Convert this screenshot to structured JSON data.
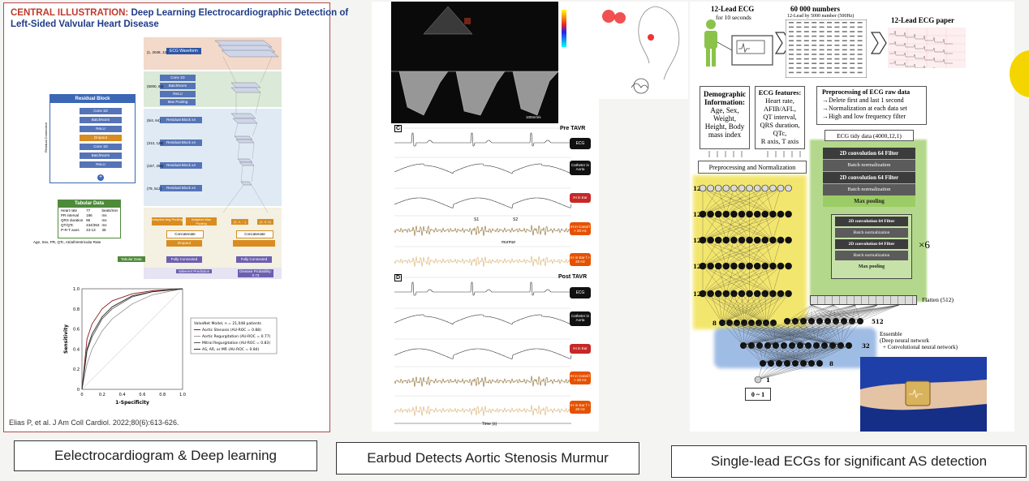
{
  "left_panel": {
    "title_prefix": "CENTRAL ILLUSTRATION:",
    "title_rest": "Deep Learning Electrocardiographic Detection of",
    "title_line2": "Left-Sided Valvular Heart Disease",
    "residual_block_title": "Residual Block",
    "residual_layers": [
      "Conv 1D",
      "BatchNorm",
      "ReLU",
      "Dropout",
      "Conv 1D",
      "BatchNorm",
      "ReLU"
    ],
    "residual_side_label": "Residual Connection",
    "tabular_title": "Tabular Data",
    "tabular_rows": [
      [
        "Heart rate",
        "77",
        "beats/min"
      ],
      [
        "PR interval",
        "186",
        "ms"
      ],
      [
        "QRS duration",
        "96",
        "ms"
      ],
      [
        "QT/QTc",
        "434/353",
        "ms"
      ],
      [
        "P-R-T axes",
        "43-13",
        "38"
      ]
    ],
    "tabular_footer": "Age, Sex, PR, QTc, Atrial/Ventricular Rate",
    "ecg_waveform_label": "ECG Waveform",
    "network_layers": [
      "Conv 1D",
      "BatchNorm",
      "ReLU",
      "Max Pooling",
      "Residual Block x4",
      "Residual Block x4",
      "Residual Block x4",
      "Residual Block x4"
    ],
    "shape_labels": [
      "(1, 2048, 12)",
      "(5000, 64)",
      "(5/4, 64)",
      "(313, 128)",
      "(157, 256)",
      "(79, 512)"
    ],
    "pooling_labels": [
      "Adaptive Avg Pooling",
      "Adaptive Max Pooling",
      "Concatenate"
    ],
    "dropout_label": "Dropout",
    "fully_connected": "Fully Connected",
    "tabular_data_chip": "Tabular Data",
    "concatenate_label": "Concatenate",
    "output_left": "Valvenet Prediction",
    "output_right": "Disease Probability: 0.73",
    "legend_title": "ValveNet Model, n = 21,048 patients",
    "legend_items": [
      "Aortic Stenosis (AU-ROC = 0.88)",
      "Aortic Regurgitation (AU-ROC = 0.77)",
      "Mitral Regurgitation (AU-ROC = 0.83)",
      "AS, AR, or MR (AU-ROC = 0.84)"
    ],
    "ylabel": "Sensitivity",
    "xlabel": "1-Specificity",
    "ticks": [
      "0",
      "0.2",
      "0.4",
      "0.6",
      "0.8",
      "1.0"
    ],
    "citation": "Elias P, et al. J Am Coll Cardiol. 2022;80(6):613-626."
  },
  "middle_panel": {
    "echo_label": "100mm/s",
    "pre_tavr": "Pre TAVR",
    "post_tavr": "Post TAVR",
    "panel_c": "C",
    "panel_d": "D",
    "badges_pre": [
      "ECG",
      "Catheter in Aorta",
      "IH in Ear",
      "IH in Canal f > 20 Hz",
      "IH in Ear f > 20 Hz"
    ],
    "badges_post": [
      "ECG",
      "Catheter in Aorta",
      "IH in Ear",
      "IH in Canal f > 20 Hz",
      "IH in Ear f > 20 Hz"
    ],
    "annotations": [
      "S1",
      "S2",
      "murmur"
    ],
    "time_label": "Time (s)"
  },
  "right_panel": {
    "ecg12_title": "12-Lead ECG",
    "ecg12_sub": "for 10 seconds",
    "numbers_title": "60 000 numbers",
    "numbers_sub": "12-Lead by 5000 number (500Hz)",
    "paper_title": "12-Lead ECG paper",
    "demo_title": "Demographic Information:",
    "demo_body": [
      "Age, Sex,",
      "Weight,",
      "Height, Body",
      "mass index"
    ],
    "features_title": "ECG features:",
    "features_body": [
      "Heart rate,",
      "AFIB/AFL,",
      "QT interval,",
      "QRS duration,",
      "QTc,",
      "R axis, T axis"
    ],
    "preproc_title": "Preprocessing of ECG raw data",
    "preproc_body": [
      "→Delete first and last 1 second",
      "→Normalization at each data set",
      "→High and low frequency filter"
    ],
    "norm_label": "Preprocessing and Normalization",
    "tidy_label": "ECG tidy data (4000,12,1)",
    "cnn_top": [
      "2D convolution 64 Filter",
      "Batch normalization",
      "2D convolution 64 Filter",
      "Batch normalization",
      "Max pooling"
    ],
    "cnn_repeat": [
      "2D convolution 64 Filter",
      "Batch normalization",
      "2D convolution 64 Filter",
      "Batch normalization",
      "Max pooling"
    ],
    "repeat_label": "×6",
    "flatten_label": "Flatten (512)",
    "layer_sizes": [
      "12",
      "12",
      "12",
      "12",
      "12",
      "12",
      "8"
    ],
    "dense_sizes": [
      "512",
      "32",
      "8",
      "1"
    ],
    "ensemble_title": "Ensemble",
    "ensemble_lines": [
      "(Deep neural network",
      "+ Convolutional neural network)"
    ],
    "output_range": "0 ~ 1"
  },
  "captions": {
    "left": "Eelectrocardiogram & Deep learning",
    "middle": "Earbud Detects Aortic Stenosis Murmur",
    "right": "Single-lead ECGs for significant AS detection"
  },
  "chart_data": {
    "type": "line",
    "title": "",
    "xlabel": "1-Specificity",
    "ylabel": "Sensitivity",
    "xlim": [
      0,
      1
    ],
    "ylim": [
      0,
      1
    ],
    "series": [
      {
        "name": "Aortic Stenosis (AU-ROC = 0.88)",
        "x": [
          0,
          0.05,
          0.1,
          0.2,
          0.3,
          0.5,
          0.7,
          1
        ],
        "y": [
          0,
          0.5,
          0.65,
          0.8,
          0.88,
          0.95,
          0.98,
          1
        ]
      },
      {
        "name": "Aortic Regurgitation (AU-ROC = 0.77)",
        "x": [
          0,
          0.05,
          0.1,
          0.2,
          0.3,
          0.5,
          0.7,
          1
        ],
        "y": [
          0,
          0.25,
          0.4,
          0.58,
          0.7,
          0.85,
          0.94,
          1
        ]
      },
      {
        "name": "Mitral Regurgitation (AU-ROC = 0.83)",
        "x": [
          0,
          0.05,
          0.1,
          0.2,
          0.3,
          0.5,
          0.7,
          1
        ],
        "y": [
          0,
          0.38,
          0.52,
          0.7,
          0.8,
          0.92,
          0.97,
          1
        ]
      },
      {
        "name": "AS, AR, or MR (AU-ROC = 0.84)",
        "x": [
          0,
          0.05,
          0.1,
          0.2,
          0.3,
          0.5,
          0.7,
          1
        ],
        "y": [
          0,
          0.4,
          0.55,
          0.72,
          0.82,
          0.93,
          0.97,
          1
        ]
      }
    ],
    "grid": false,
    "legend": "right"
  },
  "colors": {
    "title_red": "#c0392b",
    "title_blue": "#1f3c88",
    "residual_blue": "#3b67b5",
    "tabular_green": "#4f8a3b",
    "orange": "#d98c1f",
    "purple": "#6c5fb0",
    "yellow": "#f1e14a",
    "green_bg": "#9ccc65",
    "blue_bg": "#7fa6dc",
    "roc_colors": [
      "#8b1a1a",
      "#9a9a9a",
      "#555555",
      "#2b2b2b"
    ]
  }
}
